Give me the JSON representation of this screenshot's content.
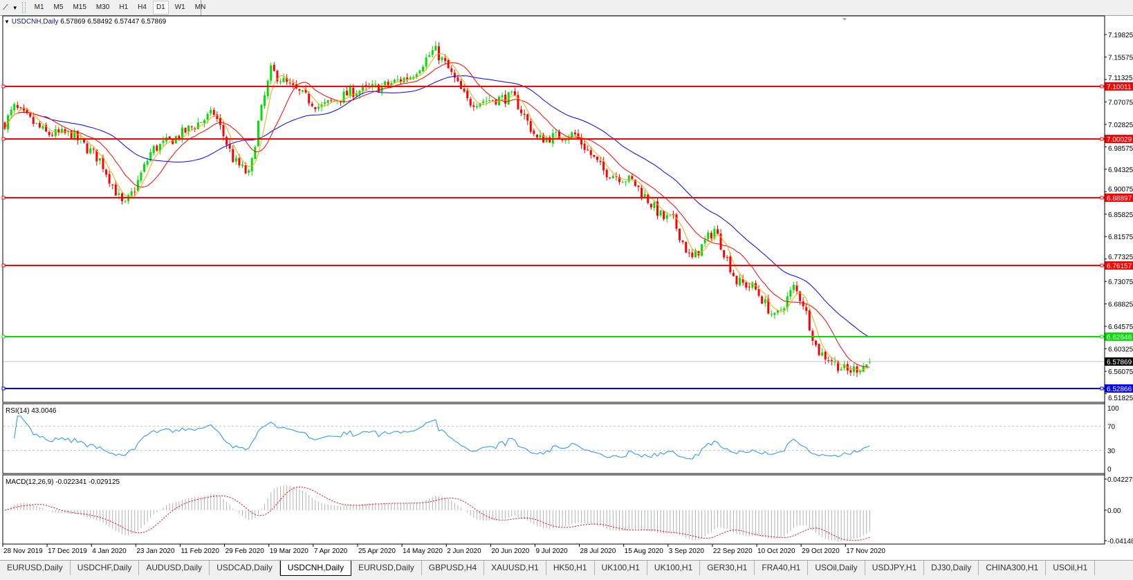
{
  "toolbar": {
    "tool_icon": "line-studies-icon",
    "timeframes": [
      "M1",
      "M5",
      "M15",
      "M30",
      "H1",
      "H4",
      "D1",
      "W1",
      "MN"
    ],
    "active_timeframe": "D1"
  },
  "chart": {
    "symbol": "USDCNH,Daily",
    "ohlc": "6.57869 6.58492 6.57447 6.57869",
    "price_ticks": [
      "7.19825",
      "7.15575",
      "7.11325",
      "7.07075",
      "7.02825",
      "6.98575",
      "6.94325",
      "6.90075",
      "6.85825",
      "6.81575",
      "6.77325",
      "6.73075",
      "6.68825",
      "6.64575",
      "6.60325",
      "6.56075",
      "6.51825"
    ],
    "current_price": "6.57869",
    "horizontal_lines": [
      {
        "price": "7.10011",
        "color": "#ff0000"
      },
      {
        "price": "7.00029",
        "color": "#ff0000"
      },
      {
        "price": "6.88897",
        "color": "#ff0000"
      },
      {
        "price": "6.76157",
        "color": "#ff0000"
      },
      {
        "price": "6.62646",
        "color": "#00e000"
      },
      {
        "price": "6.52866",
        "color": "#0000ff"
      }
    ],
    "colors": {
      "bull": "#00e000",
      "bear": "#ff0000",
      "ma_fast": "#ffa500",
      "ma_mid": "#ff0000",
      "ma_slow": "#0000ff",
      "rsi": "#1e90ff",
      "macd_signal": "#ff0000",
      "macd_hist": "#b0b0b0"
    }
  },
  "chart_data": {
    "type": "candlestick",
    "x_tick_labels": [
      "28 Nov 2019",
      "17 Dec 2019",
      "4 Jan 2020",
      "23 Jan 2020",
      "11 Feb 2020",
      "29 Feb 2020",
      "19 Mar 2020",
      "7 Apr 2020",
      "25 Apr 2020",
      "14 May 2020",
      "2 Jun 2020",
      "20 Jun 2020",
      "9 Jul 2020",
      "28 Jul 2020",
      "15 Aug 2020",
      "3 Sep 2020",
      "22 Sep 2020",
      "10 Oct 2020",
      "29 Oct 2020",
      "17 Nov 2020"
    ],
    "ylim": [
      6.51825,
      7.19825
    ],
    "price_path": [
      [
        "2019-11-28",
        7.03
      ],
      [
        "2019-12-02",
        7.06
      ],
      [
        "2019-12-16",
        7.01
      ],
      [
        "2019-12-26",
        7.01
      ],
      [
        "2020-01-07",
        6.96
      ],
      [
        "2020-01-17",
        6.87
      ],
      [
        "2020-01-22",
        6.91
      ],
      [
        "2020-01-29",
        6.98
      ],
      [
        "2020-02-07",
        7.0
      ],
      [
        "2020-02-24",
        7.05
      ],
      [
        "2020-03-03",
        6.96
      ],
      [
        "2020-03-10",
        6.93
      ],
      [
        "2020-03-13",
        7.02
      ],
      [
        "2020-03-19",
        7.13
      ],
      [
        "2020-03-27",
        7.1
      ],
      [
        "2020-04-09",
        7.06
      ],
      [
        "2020-04-22",
        7.09
      ],
      [
        "2020-05-05",
        7.1
      ],
      [
        "2020-05-17",
        7.12
      ],
      [
        "2020-05-27",
        7.17
      ],
      [
        "2020-06-01",
        7.14
      ],
      [
        "2020-06-10",
        7.07
      ],
      [
        "2020-06-29",
        7.08
      ],
      [
        "2020-07-09",
        7.0
      ],
      [
        "2020-07-25",
        7.01
      ],
      [
        "2020-08-06",
        6.94
      ],
      [
        "2020-08-18",
        6.92
      ],
      [
        "2020-08-31",
        6.85
      ],
      [
        "2020-09-04",
        6.85
      ],
      [
        "2020-09-12",
        6.77
      ],
      [
        "2020-09-22",
        6.83
      ],
      [
        "2020-10-01",
        6.73
      ],
      [
        "2020-10-08",
        6.72
      ],
      [
        "2020-10-17",
        6.66
      ],
      [
        "2020-10-25",
        6.72
      ],
      [
        "2020-10-29",
        6.69
      ],
      [
        "2020-11-04",
        6.6
      ],
      [
        "2020-11-17",
        6.56
      ],
      [
        "2020-11-23",
        6.57
      ],
      [
        "2020-11-27",
        6.57869
      ]
    ],
    "last_bar": {
      "open": 6.57869,
      "high": 6.58492,
      "low": 6.57447,
      "close": 6.57869
    },
    "rsi": {
      "label": "RSI(14) 43.0046",
      "ticks": [
        "100",
        "70",
        "30",
        "0"
      ],
      "levels": [
        70,
        30
      ]
    },
    "macd": {
      "label": "MACD(12,26,9) -0.022341 -0.029125",
      "ticks": [
        "0.042275",
        "0.00",
        "-0.04148"
      ]
    }
  },
  "tabs": [
    "EURUSD,Daily",
    "USDCHF,Daily",
    "AUDUSD,Daily",
    "USDCAD,Daily",
    "USDCNH,Daily",
    "EURUSD,Daily",
    "GBPUSD,H4",
    "XAUUSD,H1",
    "HK50,H1",
    "UK100,H1",
    "UK100,H1",
    "GER30,H1",
    "FRA40,H1",
    "USOil,Daily",
    "USDJPY,H1",
    "DJ30,Daily",
    "CHINA300,H1",
    "USOil,H1"
  ],
  "active_tab": 4
}
